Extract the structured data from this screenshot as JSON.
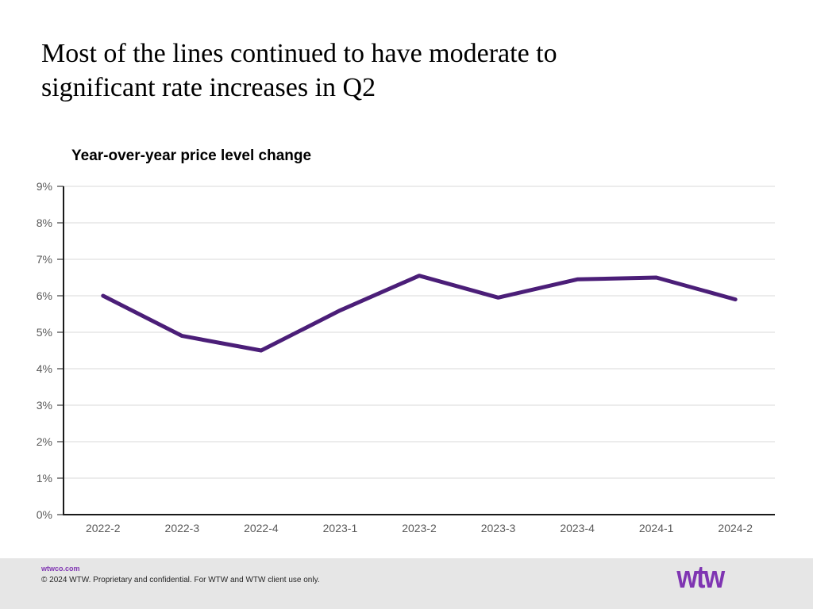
{
  "slide": {
    "title": "Most of the lines continued to have moderate to significant rate increases in Q2"
  },
  "chart": {
    "title": "Year-over-year price level change"
  },
  "chart_data": {
    "type": "line",
    "title": "Year-over-year price level change",
    "categories": [
      "2022-2",
      "2022-3",
      "2022-4",
      "2023-1",
      "2023-2",
      "2023-3",
      "2023-4",
      "2024-1",
      "2024-2"
    ],
    "series": [
      {
        "name": "Year-over-year price level change",
        "values": [
          6.0,
          4.9,
          4.5,
          5.6,
          6.55,
          5.95,
          6.45,
          6.5,
          5.9
        ]
      }
    ],
    "xlabel": "",
    "ylabel": "",
    "ylim": [
      0,
      9
    ],
    "ytick_labels": [
      "0%",
      "1%",
      "2%",
      "3%",
      "4%",
      "5%",
      "6%",
      "7%",
      "8%",
      "9%"
    ],
    "grid": "horizontal",
    "legend": "none"
  },
  "colors": {
    "line": "#4B1E78",
    "brand_purple": "#7F35B2",
    "footer_bg": "#E6E6E6",
    "gridline": "#D9D9D9",
    "axis": "#1A1A1A",
    "tick_label": "#595959"
  },
  "footer": {
    "website": "wtwco.com",
    "copyright": "© 2024 WTW. Proprietary and confidential. For WTW and WTW client use only.",
    "logo_text": "wtw"
  }
}
